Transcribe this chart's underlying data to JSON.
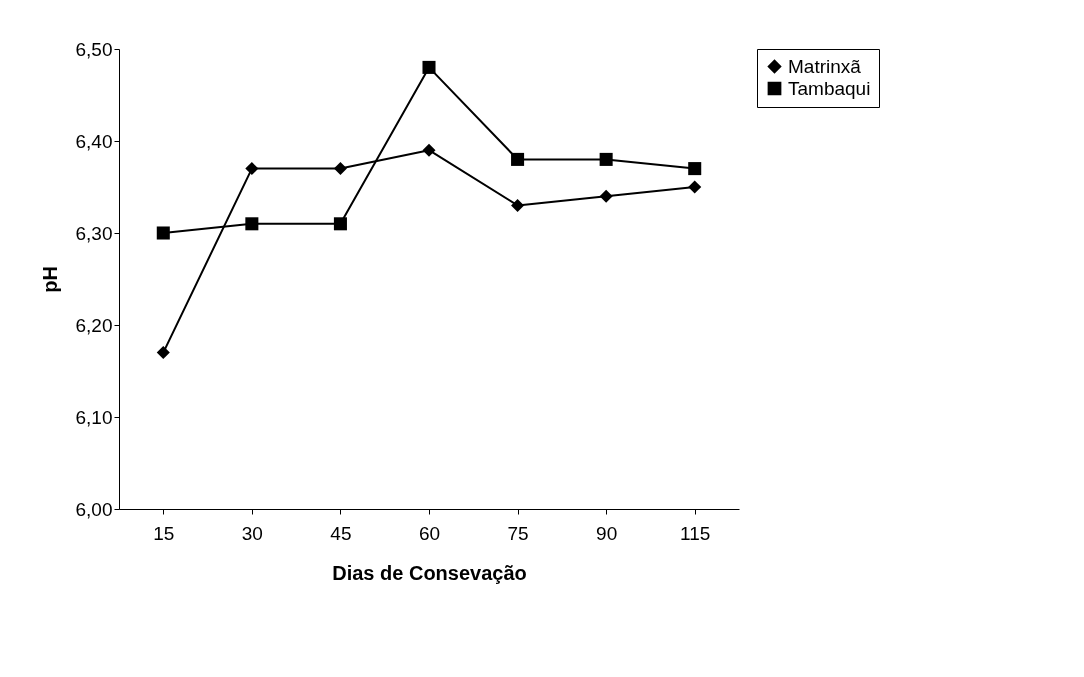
{
  "chart_data": {
    "type": "line",
    "xlabel": "Dias de Consevação",
    "ylabel": "pH",
    "categories": [
      "15",
      "30",
      "45",
      "60",
      "75",
      "90",
      "115"
    ],
    "series": [
      {
        "name": "Matrinxã",
        "color": "#000000",
        "marker": "diamond",
        "values": [
          6.17,
          6.37,
          6.37,
          6.39,
          6.33,
          6.34,
          6.35
        ]
      },
      {
        "name": "Tambaqui",
        "color": "#000000",
        "marker": "square",
        "values": [
          6.3,
          6.31,
          6.31,
          6.48,
          6.38,
          6.38,
          6.37
        ]
      }
    ],
    "ylim": [
      6.0,
      6.5
    ],
    "yticks": [
      {
        "value": 6.0,
        "label": "6,00"
      },
      {
        "value": 6.1,
        "label": "6,10"
      },
      {
        "value": 6.2,
        "label": "6,20"
      },
      {
        "value": 6.3,
        "label": "6,30"
      },
      {
        "value": 6.4,
        "label": "6,40"
      },
      {
        "value": 6.5,
        "label": "6,50"
      }
    ],
    "grid": false,
    "legend": "right",
    "line_style": "solid"
  }
}
